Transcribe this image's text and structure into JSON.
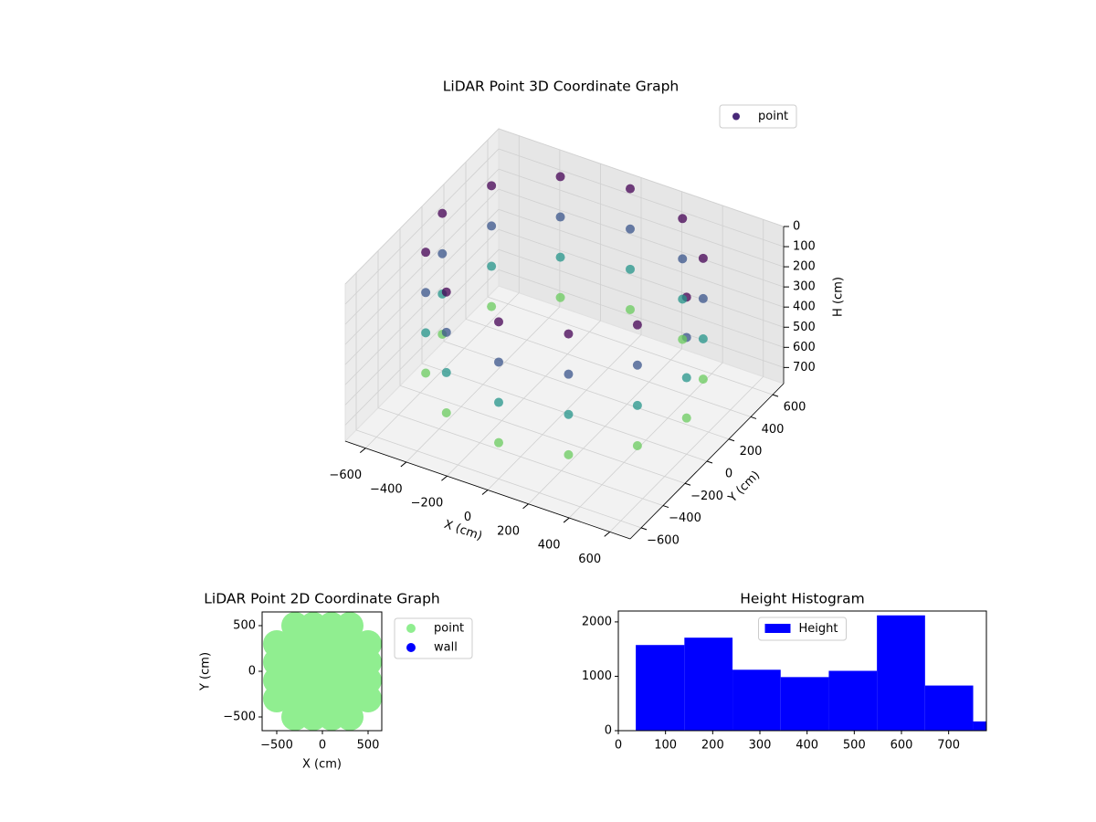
{
  "chart_data": [
    {
      "type": "scatter3d",
      "title": "LiDAR Point 3D Coordinate Graph",
      "xlabel": "X (cm)",
      "ylabel": "Y (cm)",
      "zlabel": "H (cm)",
      "xlim": [
        -700,
        700
      ],
      "ylim": [
        -700,
        700
      ],
      "zlim": [
        0,
        780
      ],
      "zinverted": true,
      "colormap": "viridis",
      "legend": "upper right",
      "xticks": [
        {
          "value": -600,
          "label": "−600"
        },
        {
          "value": -400,
          "label": "−400"
        },
        {
          "value": -200,
          "label": "−200"
        },
        0,
        200,
        400,
        600
      ],
      "yticks": [
        {
          "value": -600,
          "label": "−600"
        },
        {
          "value": -400,
          "label": "−400"
        },
        {
          "value": -200,
          "label": "−200"
        },
        0,
        200,
        400,
        600
      ],
      "zticks": [
        0,
        100,
        200,
        300,
        400,
        500,
        600,
        700
      ],
      "series": [
        {
          "name": "point",
          "color": "#482878",
          "x": [
            600,
            600,
            600,
            600,
            520,
            520,
            520,
            520,
            300,
            300,
            300,
            300,
            0,
            0,
            0,
            0,
            -300,
            -300,
            -300,
            -300,
            -520,
            -520,
            -520,
            -520,
            -600,
            -600,
            -600,
            -600,
            -520,
            -520,
            -520,
            -520,
            -300,
            -300,
            -300,
            -300,
            0,
            0,
            0,
            0,
            300,
            300,
            300,
            300,
            520,
            520,
            520,
            520
          ],
          "y": [
            0,
            0,
            0,
            0,
            300,
            300,
            300,
            300,
            520,
            520,
            520,
            520,
            600,
            600,
            600,
            600,
            520,
            520,
            520,
            520,
            300,
            300,
            300,
            300,
            0,
            0,
            0,
            0,
            -300,
            -300,
            -300,
            -300,
            -520,
            -520,
            -520,
            -520,
            -600,
            -600,
            -600,
            -600,
            -520,
            -520,
            -520,
            -520,
            -300,
            -300,
            -300,
            -300
          ],
          "z": [
            0,
            200,
            400,
            600,
            0,
            200,
            400,
            600,
            0,
            200,
            400,
            600,
            0,
            200,
            400,
            600,
            0,
            200,
            400,
            600,
            0,
            200,
            400,
            600,
            0,
            200,
            400,
            600,
            0,
            200,
            400,
            600,
            0,
            200,
            400,
            600,
            0,
            200,
            400,
            600,
            0,
            200,
            400,
            600,
            0,
            200,
            400,
            600
          ]
        }
      ]
    },
    {
      "type": "scatter",
      "title": "LiDAR Point 2D Coordinate Graph",
      "xlabel": "X (cm)",
      "ylabel": "Y (cm)",
      "xlim": [
        -660,
        650
      ],
      "ylim": [
        -650,
        650
      ],
      "legend": "outside right",
      "xticks": [
        {
          "value": -500,
          "label": "−500"
        },
        0,
        500
      ],
      "yticks": [
        {
          "value": -500,
          "label": "−500"
        },
        0,
        500
      ],
      "series": [
        {
          "name": "point",
          "color": "#90ee90",
          "x": [
            -300,
            -100,
            100,
            300,
            -500,
            -300,
            -100,
            100,
            300,
            500,
            -500,
            -300,
            -100,
            100,
            300,
            500,
            -500,
            -300,
            -100,
            100,
            300,
            500,
            -500,
            -300,
            -100,
            100,
            300,
            500,
            -300,
            -100,
            100,
            300
          ],
          "y": [
            -500,
            -500,
            -500,
            -500,
            -300,
            -300,
            -300,
            -300,
            -300,
            -300,
            -100,
            -100,
            -100,
            -100,
            -100,
            -100,
            100,
            100,
            100,
            100,
            100,
            100,
            300,
            300,
            300,
            300,
            300,
            300,
            500,
            500,
            500,
            500
          ]
        },
        {
          "name": "wall",
          "color": "#0000ff",
          "x": [],
          "y": []
        }
      ]
    },
    {
      "type": "histogram",
      "title": "Height Histogram",
      "legend": "upper center",
      "xlim": [
        0,
        780
      ],
      "ylim": [
        0,
        2200
      ],
      "xticks": [
        0,
        100,
        200,
        300,
        400,
        500,
        600,
        700
      ],
      "yticks": [
        0,
        1000,
        2000
      ],
      "series": [
        {
          "name": "Height",
          "color": "#0000ff",
          "bins": [
            37,
            140,
            242,
            344,
            446,
            548,
            650,
            752,
            854
          ],
          "counts": [
            1575,
            1710,
            1120,
            985,
            1100,
            2120,
            830,
            170
          ]
        }
      ]
    }
  ]
}
